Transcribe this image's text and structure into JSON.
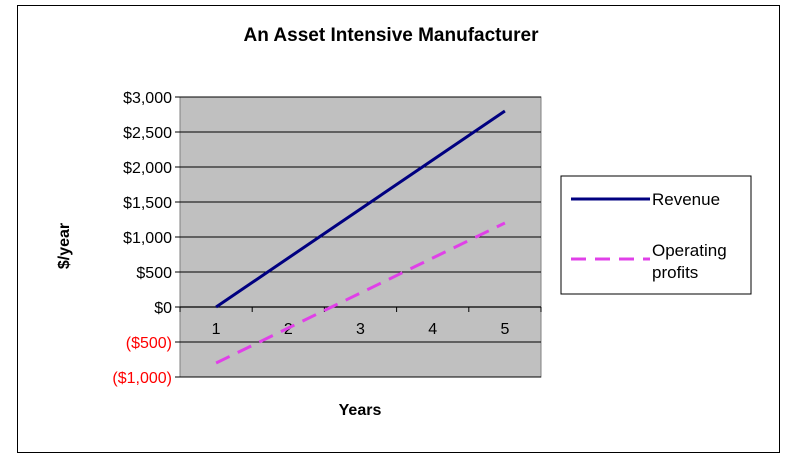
{
  "chart_data": {
    "type": "line",
    "title": "An Asset Intensive Manufacturer",
    "xlabel": "Years",
    "ylabel": "$/year",
    "categories": [
      "1",
      "2",
      "3",
      "4",
      "5"
    ],
    "ylim": [
      -1000,
      3000
    ],
    "yticks": [
      {
        "value": 3000,
        "label": "$3,000",
        "color": "#000000"
      },
      {
        "value": 2500,
        "label": "$2,500",
        "color": "#000000"
      },
      {
        "value": 2000,
        "label": "$2,000",
        "color": "#000000"
      },
      {
        "value": 1500,
        "label": "$1,500",
        "color": "#000000"
      },
      {
        "value": 1000,
        "label": "$1,000",
        "color": "#000000"
      },
      {
        "value": 500,
        "label": "$500",
        "color": "#000000"
      },
      {
        "value": 0,
        "label": "$0",
        "color": "#000000"
      },
      {
        "value": -500,
        "label": "($500)",
        "color": "#ff0000"
      },
      {
        "value": -1000,
        "label": "($1,000)",
        "color": "#ff0000"
      }
    ],
    "series": [
      {
        "name": "Revenue",
        "values": [
          0,
          700,
          1400,
          2100,
          2800
        ],
        "color": "#000080",
        "dash": "solid"
      },
      {
        "name": "Operating profits",
        "values": [
          -800,
          -300,
          200,
          700,
          1200
        ],
        "color": "#e040e8",
        "dash": "dashed"
      }
    ],
    "legend_position": "right",
    "plot_background": "#c0c0c0",
    "grid": true
  }
}
